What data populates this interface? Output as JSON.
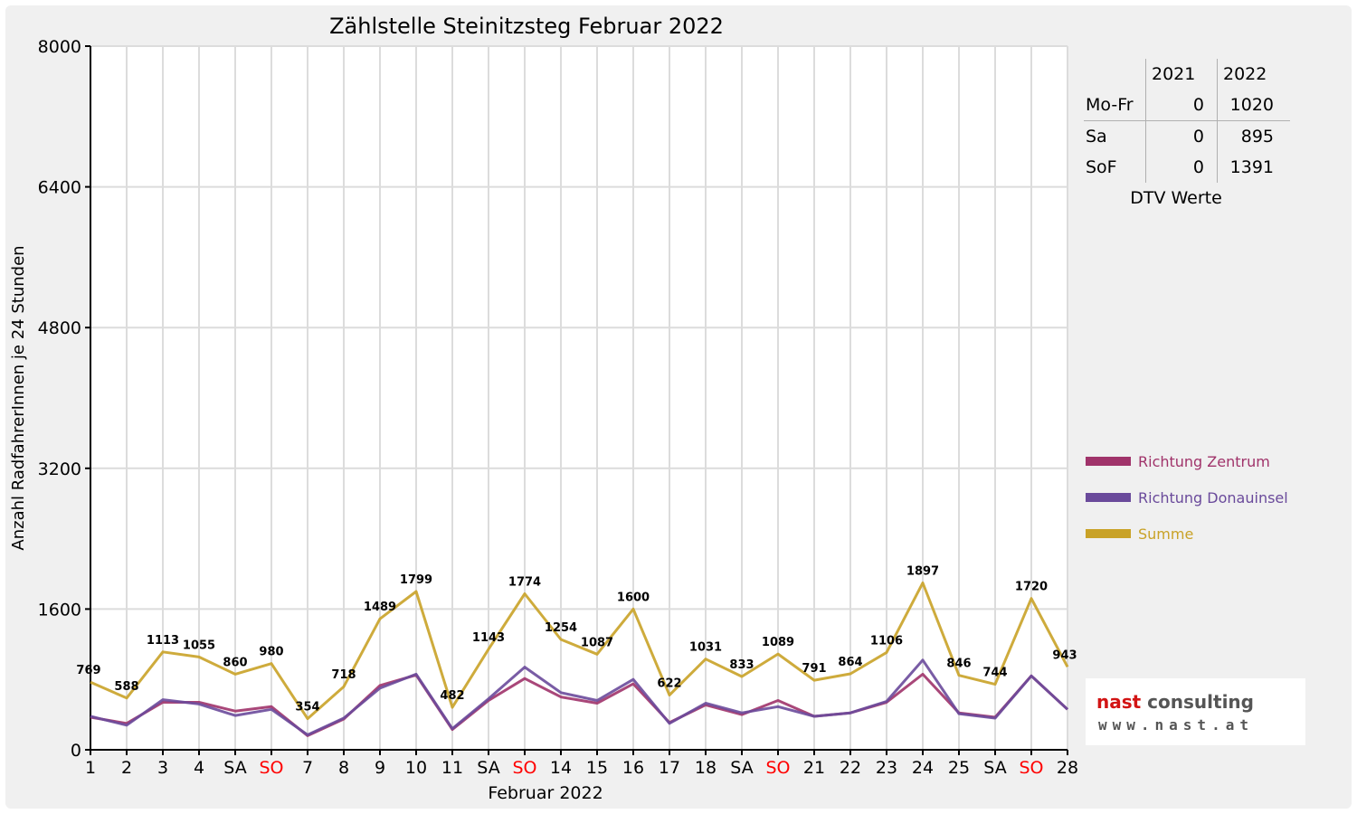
{
  "chart_data": {
    "type": "line",
    "title": "Zählstelle Steinitzsteg Februar 2022",
    "xlabel": "Februar 2022",
    "ylabel": "Anzahl RadfahrerInnen je 24 Stunden",
    "ylim": [
      0,
      8000
    ],
    "y_ticks": [
      "0",
      "1600",
      "3200",
      "4800",
      "6400",
      "8000"
    ],
    "grid": true,
    "legend_position": "right",
    "categories": [
      "1",
      "2",
      "3",
      "4",
      "SA",
      "SO",
      "7",
      "8",
      "9",
      "10",
      "11",
      "SA",
      "SO",
      "14",
      "15",
      "16",
      "17",
      "18",
      "SA",
      "SO",
      "21",
      "22",
      "23",
      "24",
      "25",
      "SA",
      "SO",
      "28"
    ],
    "weekend_labels": [
      "SO"
    ],
    "weekend_label_color": "#ff0000",
    "series": [
      {
        "name": "Richtung Zentrum",
        "color": "#a0336a",
        "values": [
          370,
          300,
          540,
          540,
          440,
          490,
          160,
          350,
          730,
          850,
          230,
          560,
          810,
          600,
          530,
          750,
          310,
          510,
          400,
          560,
          380,
          420,
          540,
          860,
          420,
          370,
          840,
          460
        ]
      },
      {
        "name": "Richtung Donauinsel",
        "color": "#6a4a9b",
        "values": [
          380,
          280,
          570,
          520,
          390,
          460,
          170,
          360,
          700,
          860,
          240,
          580,
          940,
          650,
          560,
          800,
          300,
          530,
          420,
          490,
          380,
          420,
          550,
          1020,
          410,
          360,
          840,
          460
        ]
      },
      {
        "name": "Summe",
        "color": "#c9a227",
        "values": [
          769,
          588,
          1113,
          1055,
          860,
          980,
          354,
          718,
          1489,
          1799,
          482,
          1143,
          1774,
          1254,
          1087,
          1600,
          622,
          1031,
          833,
          1089,
          791,
          864,
          1106,
          1897,
          846,
          744,
          1720,
          943
        ],
        "data_labels": [
          "769",
          "588",
          "1113",
          "1055",
          "860",
          "980",
          "354",
          "718",
          "1489",
          "1799",
          "482",
          "1143",
          "1774",
          "1254",
          "1087",
          "1600",
          "622",
          "1031",
          "833",
          "1089",
          "791",
          "864",
          "1106",
          "1897",
          "846",
          "744",
          "1720",
          "943"
        ]
      }
    ]
  },
  "dtv_table": {
    "headers": [
      "2021",
      "2022"
    ],
    "rows": [
      {
        "label": "Mo-Fr",
        "v2021": "0",
        "v2022": "1020"
      },
      {
        "label": "Sa",
        "v2021": "0",
        "v2022": "895"
      },
      {
        "label": "SoF",
        "v2021": "0",
        "v2022": "1391"
      }
    ],
    "caption": "DTV Werte"
  },
  "logo": {
    "word1": "nast",
    "word2": "consulting",
    "url": "www.nast.at"
  }
}
